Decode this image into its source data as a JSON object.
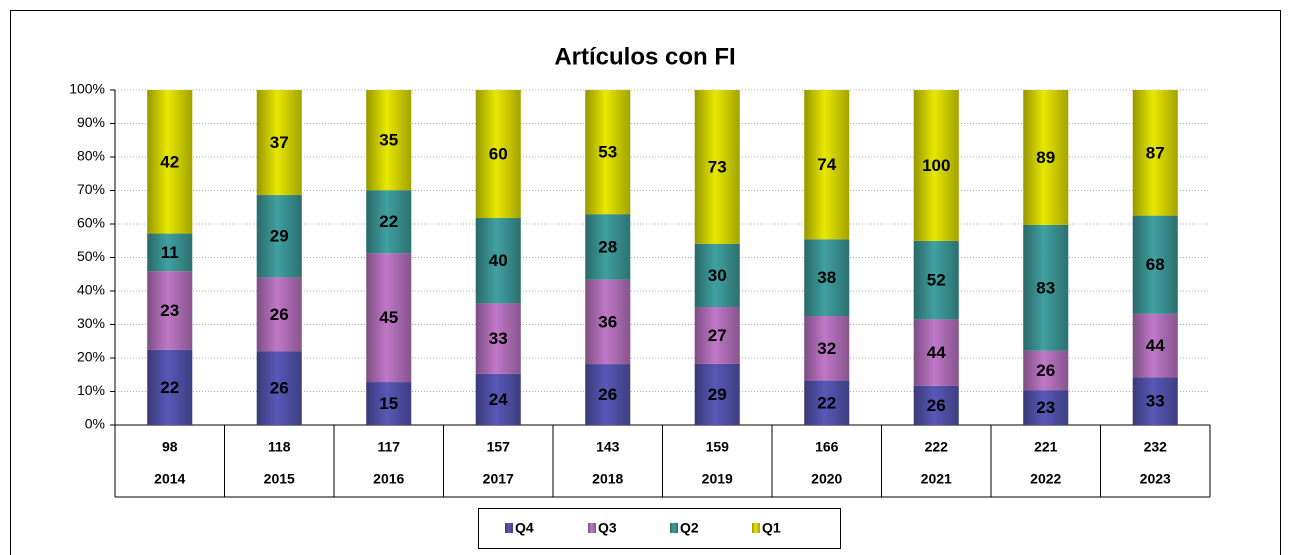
{
  "chart_data": {
    "type": "stacked_percent_bar",
    "title": "Artículos con FI",
    "categories": [
      "2014",
      "2015",
      "2016",
      "2017",
      "2018",
      "2019",
      "2020",
      "2021",
      "2022",
      "2023"
    ],
    "totals": [
      98,
      118,
      117,
      157,
      143,
      159,
      166,
      222,
      221,
      232
    ],
    "series": [
      {
        "name": "Q4",
        "color": "#5858b8",
        "values": [
          22,
          26,
          15,
          24,
          26,
          29,
          22,
          26,
          23,
          33
        ]
      },
      {
        "name": "Q3",
        "color": "#c078c8",
        "values": [
          23,
          26,
          45,
          33,
          36,
          27,
          32,
          44,
          26,
          44
        ]
      },
      {
        "name": "Q2",
        "color": "#40a0a0",
        "values": [
          11,
          29,
          22,
          40,
          28,
          30,
          38,
          52,
          83,
          68
        ]
      },
      {
        "name": "Q1",
        "color": "#e8e800",
        "values": [
          42,
          37,
          35,
          60,
          53,
          73,
          74,
          100,
          89,
          87
        ]
      }
    ],
    "ylim": [
      0,
      100
    ],
    "yticks": [
      {
        "value": 0,
        "label": "0%"
      },
      {
        "value": 10,
        "label": "10%"
      },
      {
        "value": 20,
        "label": "20%"
      },
      {
        "value": 30,
        "label": "30%"
      },
      {
        "value": 40,
        "label": "40%"
      },
      {
        "value": 50,
        "label": "50%"
      },
      {
        "value": 60,
        "label": "60%"
      },
      {
        "value": 70,
        "label": "70%"
      },
      {
        "value": 80,
        "label": "80%"
      },
      {
        "value": 90,
        "label": "90%"
      },
      {
        "value": 100,
        "label": "100%"
      }
    ],
    "grid": true,
    "legend": "bottom"
  }
}
